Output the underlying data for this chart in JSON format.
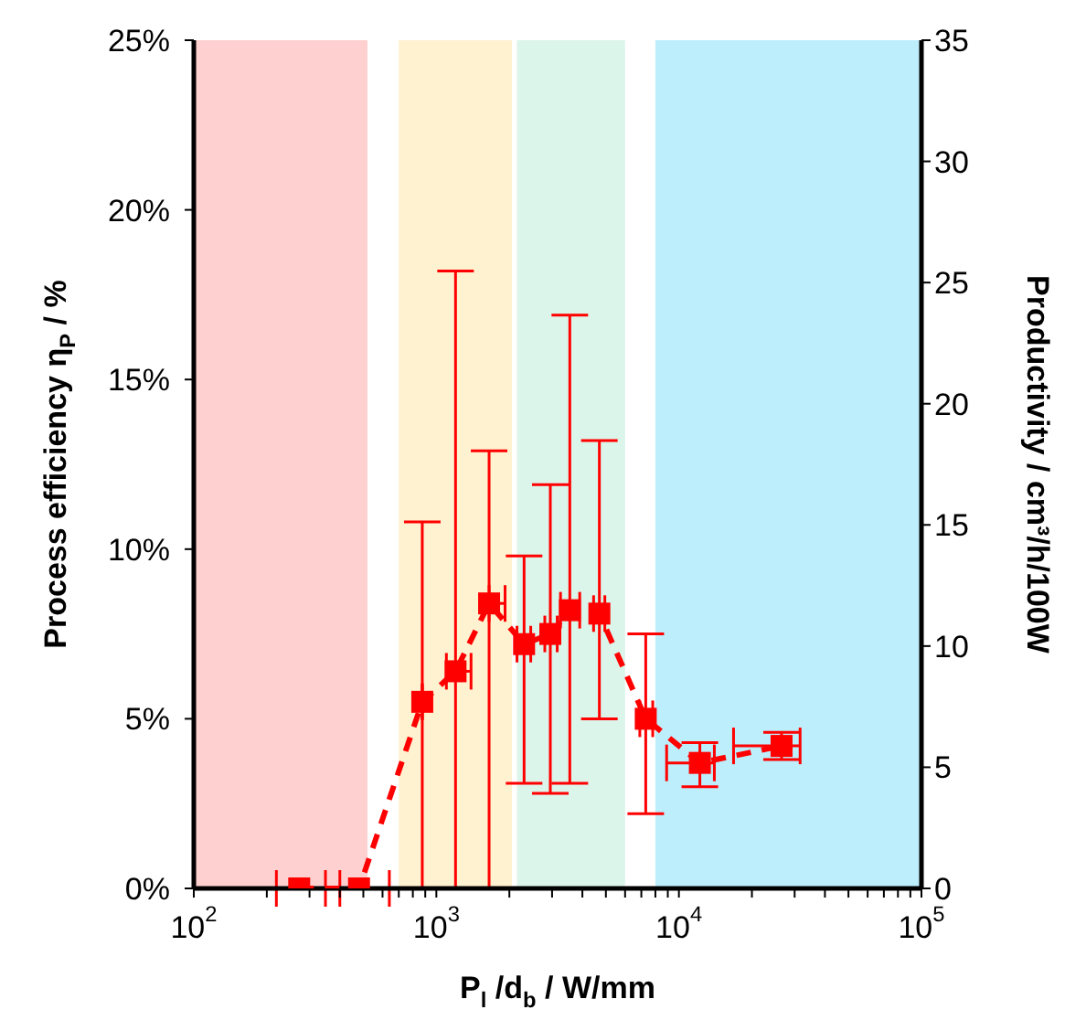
{
  "chart_data": {
    "type": "line",
    "xlabel": "P$_{l}$ /d$_{b}$ / W/mm",
    "ylabel": "Process efficiency η$_{P}$ / %",
    "y2label": "Productivity / cm³/h/100W",
    "x": [
      272,
      480,
      875,
      1200,
      1650,
      2300,
      2950,
      3550,
      4700,
      7300,
      12200,
      26500
    ],
    "series": [
      {
        "color": "#ff0000",
        "values": [
          0,
          0,
          5.5,
          6.4,
          8.4,
          7.2,
          7.5,
          8.2,
          8.1,
          5.0,
          3.7,
          4.2
        ],
        "errors": [
          null,
          null,
          [
            0,
            10.8
          ],
          [
            0,
            18.2
          ],
          [
            0,
            12.9
          ],
          [
            3.1,
            9.8
          ],
          [
            2.8,
            11.9
          ],
          [
            3.1,
            16.9
          ],
          [
            5.0,
            13.2
          ],
          [
            2.2,
            7.5
          ],
          [
            3.0,
            4.3
          ],
          [
            3.8,
            4.6
          ]
        ],
        "xerrors": [
          [
            219,
            349
          ],
          [
            400,
            640
          ],
          null,
          [
            1100,
            1390
          ],
          [
            1650,
            1920
          ],
          [
            2150,
            2450
          ],
          [
            2800,
            3150
          ],
          [
            3250,
            3900
          ],
          [
            4450,
            4950
          ],
          [
            6900,
            7800
          ],
          [
            8900,
            14000
          ],
          [
            16800,
            31600
          ]
        ]
      }
    ],
    "marker": "square",
    "line_style": "dashed",
    "log": "x",
    "xlim": [
      100,
      100000
    ],
    "xticks": [
      {
        "value": 100,
        "label": "10$^{2}$"
      },
      {
        "value": 200,
        "label": null
      },
      {
        "value": 300,
        "label": null
      },
      {
        "value": 400,
        "label": null
      },
      {
        "value": 500,
        "label": null
      },
      {
        "value": 600,
        "label": null
      },
      {
        "value": 700,
        "label": null
      },
      {
        "value": 800,
        "label": null
      },
      {
        "value": 900,
        "label": null
      },
      {
        "value": 1000,
        "label": "10$^{3}$"
      },
      {
        "value": 2000,
        "label": null
      },
      {
        "value": 3000,
        "label": null
      },
      {
        "value": 4000,
        "label": null
      },
      {
        "value": 5000,
        "label": null
      },
      {
        "value": 6000,
        "label": null
      },
      {
        "value": 7000,
        "label": null
      },
      {
        "value": 8000,
        "label": null
      },
      {
        "value": 9000,
        "label": null
      },
      {
        "value": 10000,
        "label": "10$^{4}$"
      },
      {
        "value": 20000,
        "label": null
      },
      {
        "value": 30000,
        "label": null
      },
      {
        "value": 40000,
        "label": null
      },
      {
        "value": 50000,
        "label": null
      },
      {
        "value": 60000,
        "label": null
      },
      {
        "value": 70000,
        "label": null
      },
      {
        "value": 80000,
        "label": null
      },
      {
        "value": 90000,
        "label": null
      },
      {
        "value": 100000,
        "label": "10$^{5}$"
      }
    ],
    "ylim": [
      0,
      25
    ],
    "yticks": [
      {
        "value": 0,
        "label": "0%"
      },
      {
        "value": 5,
        "label": "5%"
      },
      {
        "value": 10,
        "label": "10%"
      },
      {
        "value": 15,
        "label": "15%"
      },
      {
        "value": 20,
        "label": "20%"
      },
      {
        "value": 25,
        "label": "25%"
      }
    ],
    "y2lim": [
      0,
      35
    ],
    "y2ticks": [
      0,
      5,
      10,
      15,
      20,
      25,
      30,
      35
    ],
    "bands": [
      {
        "axis": "x",
        "from": 100,
        "to": 520,
        "color": "#ffd0d0"
      },
      {
        "axis": "x",
        "from": 700,
        "to": 2050,
        "color": "#fff2d0"
      },
      {
        "axis": "x",
        "from": 2150,
        "to": 6000,
        "color": "#dcf5ea"
      },
      {
        "axis": "x",
        "from": 8000,
        "to": 100000,
        "color": "#bdeefc"
      }
    ]
  }
}
